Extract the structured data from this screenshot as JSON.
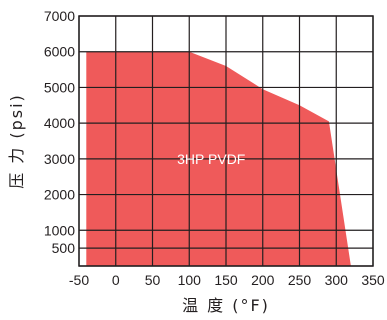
{
  "chart_data": {
    "type": "area",
    "title": "",
    "xlabel": "温 度 (°F)",
    "ylabel": "压 力 (psi)",
    "xlim": [
      -50,
      350
    ],
    "ylim": [
      0,
      7000
    ],
    "x_ticks": [
      "-50",
      "0",
      "50",
      "100",
      "150",
      "200",
      "250",
      "300",
      "350"
    ],
    "y_ticks": [
      "7000",
      "6000",
      "5000",
      "4000",
      "3000",
      "2000",
      "1000",
      "500"
    ],
    "x_grid": [
      -50,
      0,
      50,
      100,
      150,
      200,
      250,
      300,
      350
    ],
    "y_grid": [
      0,
      500,
      1000,
      2000,
      3000,
      4000,
      5000,
      6000,
      7000
    ],
    "grid": true,
    "series": [
      {
        "name": "3HP PVDF",
        "color": "#ef5a5a",
        "points": [
          {
            "x": -40,
            "y": 0
          },
          {
            "x": -40,
            "y": 6000
          },
          {
            "x": 100,
            "y": 6000
          },
          {
            "x": 150,
            "y": 5600
          },
          {
            "x": 200,
            "y": 4950
          },
          {
            "x": 250,
            "y": 4500
          },
          {
            "x": 290,
            "y": 4050
          },
          {
            "x": 320,
            "y": 0
          }
        ]
      }
    ],
    "annotations": [
      {
        "text": "3HP PVDF",
        "x": 100,
        "y": 3000
      }
    ]
  }
}
